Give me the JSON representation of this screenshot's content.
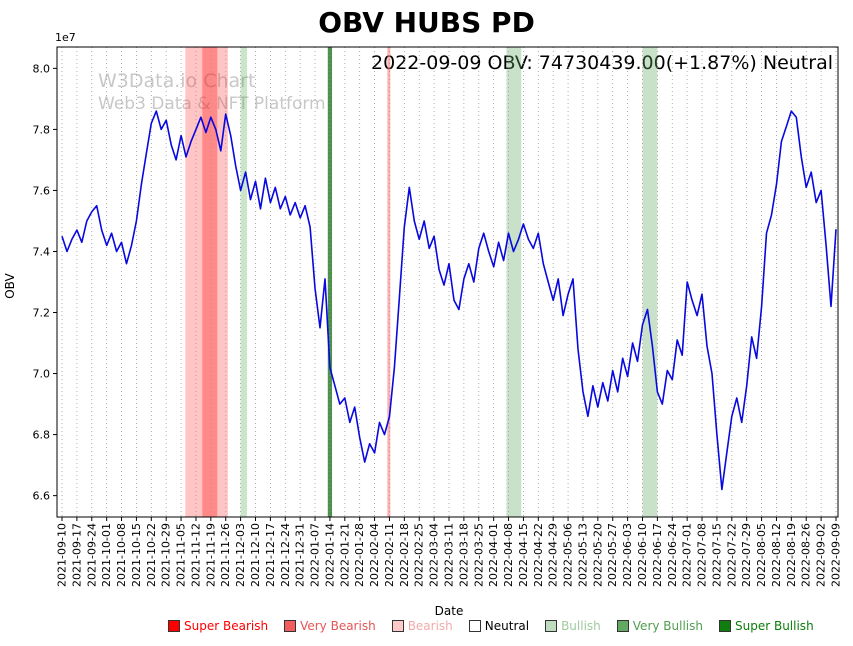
{
  "chart": {
    "title": "OBV HUBS PD",
    "annotation": "2022-09-09 OBV: 74730439.00(+1.87%) Neutral",
    "watermark_line1": "W3Data.io Chart",
    "watermark_line2": "Web3 Data & NFT Platform",
    "offset_label": "1e7",
    "xlabel": "Date",
    "ylabel": "OBV"
  },
  "chart_data": {
    "type": "line",
    "title": "OBV HUBS PD",
    "xlabel": "Date",
    "ylabel": "OBV",
    "y_unit_multiplier": 10000000,
    "ylim": [
      6.53,
      8.07
    ],
    "y_ticks": [
      6.6,
      6.8,
      7.0,
      7.2,
      7.4,
      7.6,
      7.8,
      8.0
    ],
    "x_start": "2021-09-10",
    "x_end": "2022-09-09",
    "x_tick_dates": [
      "2021-09-10",
      "2021-09-17",
      "2021-09-24",
      "2021-10-01",
      "2021-10-08",
      "2021-10-15",
      "2021-10-22",
      "2021-10-29",
      "2021-11-05",
      "2021-11-12",
      "2021-11-19",
      "2021-11-26",
      "2021-12-03",
      "2021-12-10",
      "2021-12-17",
      "2021-12-24",
      "2021-12-31",
      "2022-01-07",
      "2022-01-14",
      "2022-01-21",
      "2022-01-28",
      "2022-02-04",
      "2022-02-11",
      "2022-02-18",
      "2022-02-25",
      "2022-03-04",
      "2022-03-11",
      "2022-03-18",
      "2022-03-25",
      "2022-04-01",
      "2022-04-08",
      "2022-04-15",
      "2022-04-22",
      "2022-04-29",
      "2022-05-06",
      "2022-05-13",
      "2022-05-20",
      "2022-05-27",
      "2022-06-03",
      "2022-06-10",
      "2022-06-17",
      "2022-06-24",
      "2022-07-01",
      "2022-07-08",
      "2022-07-15",
      "2022-07-22",
      "2022-07-29",
      "2022-08-05",
      "2022-08-12",
      "2022-08-19",
      "2022-08-26",
      "2022-09-02",
      "2022-09-09"
    ],
    "series": [
      {
        "name": "OBV",
        "color": "#0808e0",
        "values_x1e7": [
          7.45,
          7.4,
          7.44,
          7.47,
          7.43,
          7.5,
          7.53,
          7.55,
          7.47,
          7.42,
          7.46,
          7.4,
          7.43,
          7.36,
          7.42,
          7.5,
          7.62,
          7.72,
          7.82,
          7.86,
          7.8,
          7.83,
          7.75,
          7.7,
          7.78,
          7.71,
          7.76,
          7.8,
          7.84,
          7.79,
          7.84,
          7.8,
          7.73,
          7.85,
          7.78,
          7.68,
          7.6,
          7.66,
          7.57,
          7.63,
          7.54,
          7.64,
          7.56,
          7.61,
          7.54,
          7.58,
          7.52,
          7.56,
          7.51,
          7.55,
          7.48,
          7.28,
          7.15,
          7.31,
          7.02,
          6.96,
          6.9,
          6.92,
          6.84,
          6.89,
          6.79,
          6.71,
          6.77,
          6.74,
          6.84,
          6.8,
          6.86,
          7.02,
          7.25,
          7.48,
          7.61,
          7.5,
          7.44,
          7.5,
          7.41,
          7.45,
          7.34,
          7.29,
          7.36,
          7.24,
          7.21,
          7.31,
          7.36,
          7.3,
          7.41,
          7.46,
          7.4,
          7.35,
          7.43,
          7.37,
          7.46,
          7.4,
          7.44,
          7.49,
          7.44,
          7.41,
          7.46,
          7.36,
          7.3,
          7.24,
          7.31,
          7.19,
          7.26,
          7.31,
          7.08,
          6.94,
          6.86,
          6.96,
          6.89,
          6.97,
          6.91,
          7.01,
          6.94,
          7.05,
          6.99,
          7.1,
          7.04,
          7.16,
          7.21,
          7.09,
          6.94,
          6.9,
          7.01,
          6.98,
          7.11,
          7.06,
          7.3,
          7.24,
          7.19,
          7.26,
          7.09,
          7.0,
          6.8,
          6.62,
          6.74,
          6.86,
          6.92,
          6.84,
          6.96,
          7.12,
          7.05,
          7.22,
          7.46,
          7.52,
          7.62,
          7.76,
          7.81,
          7.86,
          7.84,
          7.71,
          7.61,
          7.66,
          7.56,
          7.6,
          7.42,
          7.22,
          7.473
        ]
      }
    ],
    "last_point": {
      "date": "2022-09-09",
      "obv": 74730439.0,
      "change_pct": "+1.87%",
      "signal": "Neutral"
    },
    "signal_bands": [
      {
        "start": "2021-11-07",
        "end": "2021-11-27",
        "color": "rgba(255,70,70,0.32)"
      },
      {
        "start": "2021-11-15",
        "end": "2021-11-22",
        "color": "rgba(255,0,0,0.30)"
      },
      {
        "start": "2021-12-03",
        "end": "2021-12-06",
        "color": "rgba(80,170,80,0.30)"
      },
      {
        "start": "2022-01-13",
        "end": "2022-01-15",
        "color": "rgba(45,125,45,0.85)"
      },
      {
        "start": "2022-02-10",
        "end": "2022-02-11",
        "color": "rgba(255,110,110,0.55)"
      },
      {
        "start": "2022-04-07",
        "end": "2022-04-14",
        "color": "rgba(100,170,100,0.35)"
      },
      {
        "start": "2022-06-10",
        "end": "2022-06-17",
        "color": "rgba(100,170,100,0.35)"
      }
    ],
    "grid": "vertical-dotted",
    "grid_color": "#9a9a9a",
    "legend_position": "bottom"
  },
  "legend": {
    "items": [
      {
        "label": "Super Bearish",
        "swatch": "#ff0000",
        "text_color": "#ff0000"
      },
      {
        "label": "Very Bearish",
        "swatch": "#f25c5c",
        "text_color": "#e25555"
      },
      {
        "label": "Bearish",
        "swatch": "#ffc9c9",
        "text_color": "#f4a9a9"
      },
      {
        "label": "Neutral",
        "swatch": "#ffffff",
        "text_color": "#000000"
      },
      {
        "label": "Bullish",
        "swatch": "#bfdcbf",
        "text_color": "#9fcb9f"
      },
      {
        "label": "Very Bullish",
        "swatch": "#63a963",
        "text_color": "#4f9d4f"
      },
      {
        "label": "Super Bullish",
        "swatch": "#0f7d0f",
        "text_color": "#0b7d0b"
      }
    ]
  }
}
